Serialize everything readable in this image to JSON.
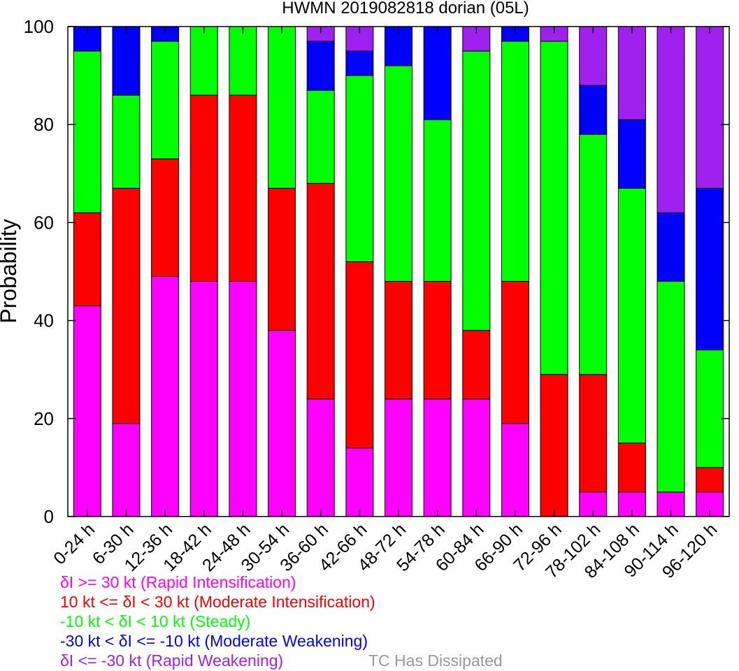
{
  "chart_data": {
    "type": "bar",
    "stacked": true,
    "title": "HWMN 2019082818 dorian (05L)",
    "ylabel": "Probability",
    "xlabel": "",
    "ylim": [
      0,
      100
    ],
    "yticks": [
      0,
      20,
      40,
      60,
      80,
      100
    ],
    "categories": [
      "0-24 h",
      "6-30 h",
      "12-36 h",
      "18-42 h",
      "24-48 h",
      "30-54 h",
      "36-60 h",
      "42-66 h",
      "48-72 h",
      "54-78 h",
      "60-84 h",
      "66-90 h",
      "72-96 h",
      "78-102 h",
      "84-108 h",
      "90-114 h",
      "96-120 h"
    ],
    "series": [
      {
        "name": "δI >= 30 kt (Rapid Intensification)",
        "color": "#ff00ff",
        "values": [
          43,
          19,
          49,
          48,
          48,
          38,
          24,
          14,
          24,
          24,
          24,
          19,
          0,
          5,
          5,
          5,
          5
        ]
      },
      {
        "name": "10 kt <= δI < 30 kt (Moderate Intensification)",
        "color": "#ff0000",
        "values": [
          19,
          48,
          24,
          38,
          38,
          29,
          44,
          38,
          24,
          24,
          14,
          29,
          29,
          24,
          10,
          0,
          5
        ]
      },
      {
        "name": "-10 kt < δI < 10 kt (Steady)",
        "color": "#00ff00",
        "values": [
          33,
          19,
          24,
          14,
          14,
          33,
          19,
          38,
          44,
          33,
          57,
          49,
          68,
          49,
          52,
          43,
          24
        ]
      },
      {
        "name": "-30 kt < δI <= -10 kt (Moderate Weakening)",
        "color": "#0000ff",
        "values": [
          5,
          14,
          3,
          0,
          0,
          0,
          10,
          5,
          8,
          19,
          0,
          3,
          0,
          10,
          14,
          14,
          33
        ]
      },
      {
        "name": "δI <= -30 kt (Rapid Weakening)",
        "color": "#a020f0",
        "values": [
          0,
          0,
          0,
          0,
          0,
          0,
          3,
          5,
          0,
          0,
          5,
          0,
          3,
          12,
          19,
          38,
          33
        ]
      },
      {
        "name": "TC Has Dissipated",
        "color": "#999999",
        "values": [
          0,
          0,
          0,
          0,
          0,
          0,
          0,
          0,
          0,
          0,
          0,
          0,
          0,
          0,
          0,
          0,
          0
        ]
      }
    ],
    "legend_position": "bottom-left",
    "grid": false
  }
}
